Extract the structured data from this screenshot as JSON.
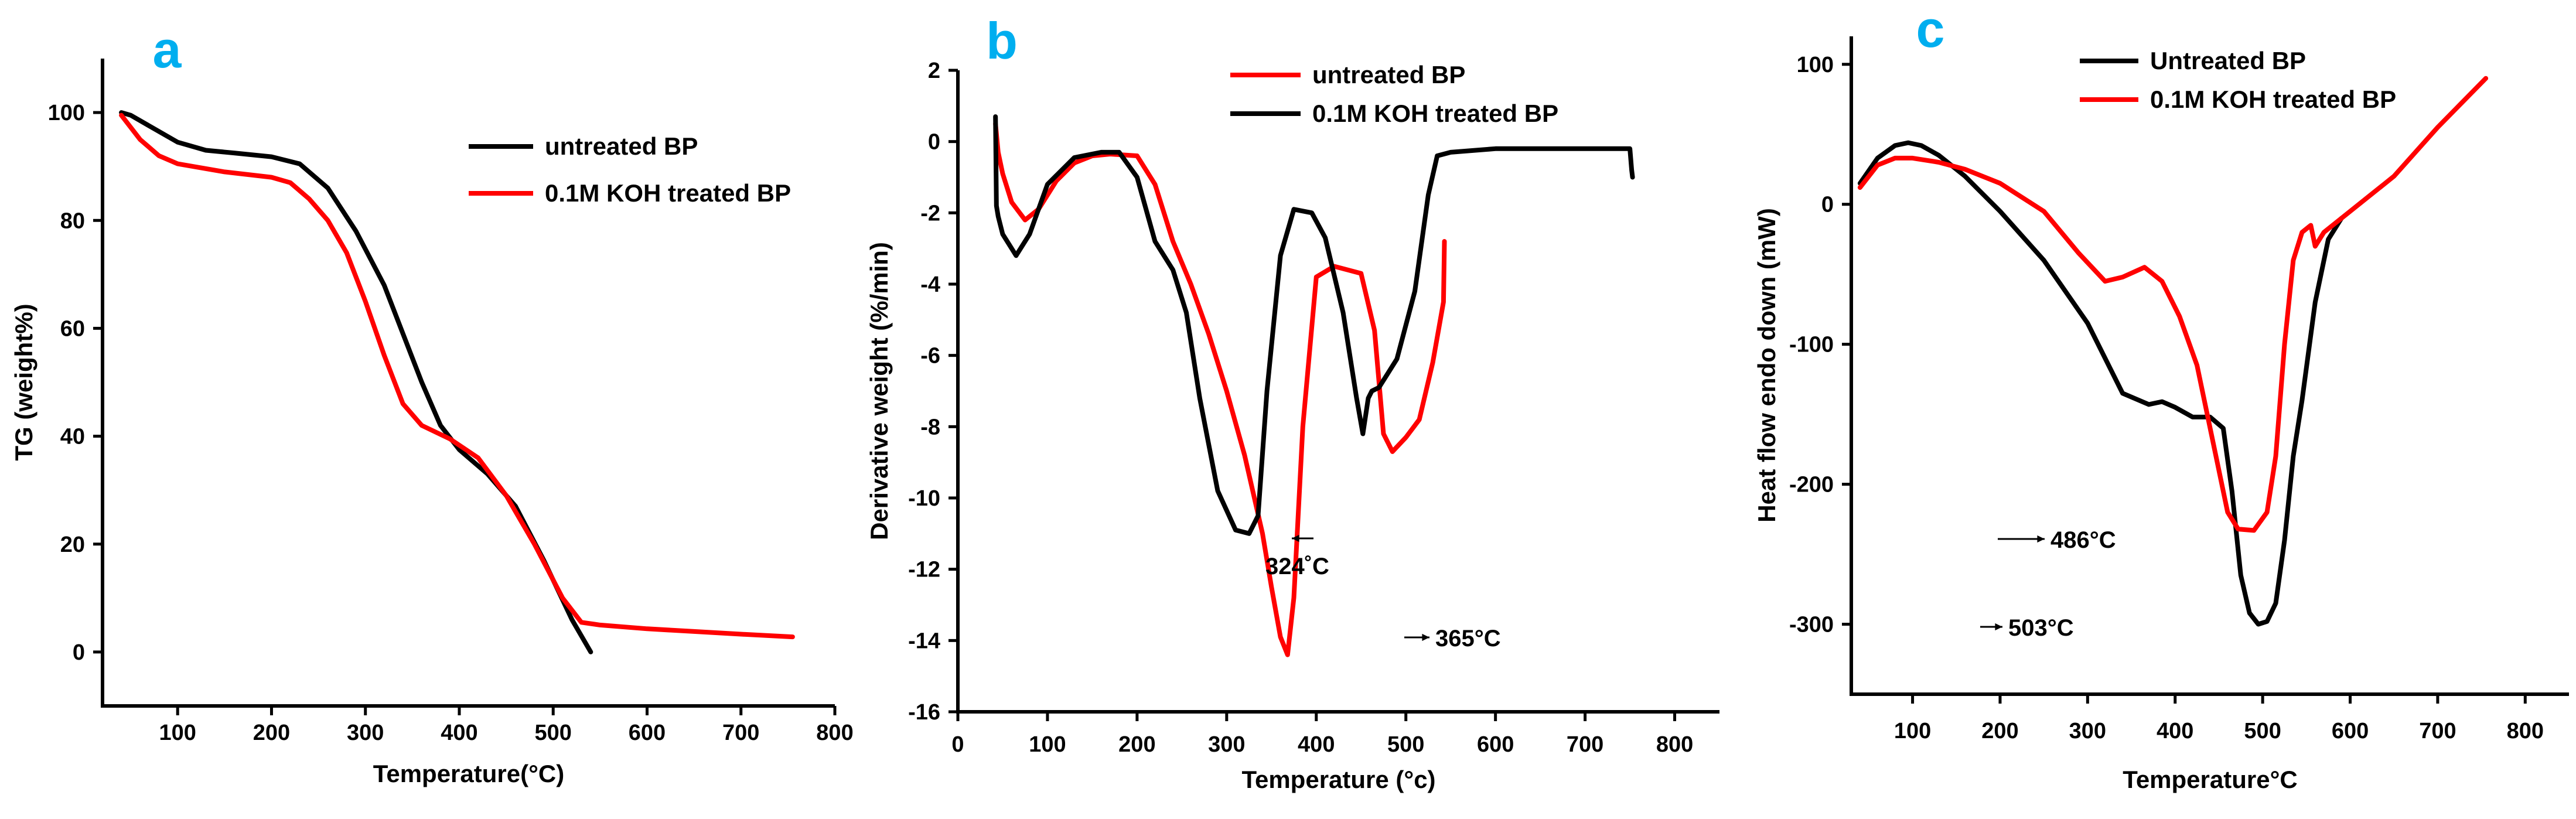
{
  "chart_data": [
    {
      "type": "line",
      "panel_label": "a",
      "title": "",
      "xlabel": "Temperature(°C)",
      "ylabel": "TG (weight%)",
      "xlim": [
        20,
        800
      ],
      "ylim": [
        -10,
        110
      ],
      "xticks": [
        100,
        200,
        300,
        400,
        500,
        600,
        700,
        800
      ],
      "yticks": [
        0,
        20,
        40,
        60,
        80,
        100
      ],
      "legend_position": "upper-right",
      "series": [
        {
          "name": "untreated BP",
          "color": "#000000",
          "x": [
            40,
            50,
            70,
            100,
            130,
            160,
            200,
            230,
            260,
            290,
            320,
            340,
            360,
            380,
            400,
            430,
            460,
            490,
            520,
            540
          ],
          "y": [
            100,
            99.5,
            97.5,
            94.5,
            93,
            92.5,
            91.8,
            90.5,
            86,
            78,
            68,
            59,
            50,
            42,
            37.5,
            33,
            27,
            17,
            6,
            0
          ]
        },
        {
          "name": "0.1M KOH treated BP",
          "color": "#ff0000",
          "x": [
            40,
            60,
            80,
            100,
            150,
            200,
            220,
            240,
            260,
            280,
            300,
            320,
            340,
            360,
            390,
            420,
            450,
            480,
            510,
            530,
            550,
            600,
            650,
            700,
            755
          ],
          "y": [
            99.5,
            95,
            92,
            90.5,
            89,
            88,
            87,
            84,
            80,
            74,
            65,
            55,
            46,
            42,
            39.5,
            36,
            29,
            20,
            10,
            5.5,
            5,
            4.3,
            3.8,
            3.3,
            2.8
          ]
        }
      ]
    },
    {
      "type": "line",
      "panel_label": "b",
      "title": "",
      "xlabel": "Temperature (°c)",
      "ylabel": "Derivative weight (%/min)",
      "xlim": [
        0,
        850
      ],
      "ylim": [
        -16,
        2
      ],
      "xticks": [
        0,
        100,
        200,
        300,
        400,
        500,
        600,
        700,
        800
      ],
      "yticks": [
        2,
        0,
        -2,
        -4,
        -6,
        -8,
        -10,
        -12,
        -14,
        -16
      ],
      "legend_position": "top-right",
      "series": [
        {
          "name": "untreated BP",
          "color": "#ff0000",
          "x": [
            42,
            45,
            50,
            60,
            75,
            90,
            110,
            130,
            150,
            170,
            200,
            220,
            240,
            260,
            280,
            300,
            320,
            340,
            350,
            360,
            368,
            375,
            385,
            400,
            420,
            450,
            465,
            475,
            485,
            500,
            515,
            530,
            542,
            543
          ],
          "y": [
            0.5,
            -0.3,
            -0.9,
            -1.7,
            -2.2,
            -1.9,
            -1.1,
            -0.6,
            -0.4,
            -0.35,
            -0.4,
            -1.2,
            -2.8,
            -4,
            -5.4,
            -7,
            -8.8,
            -11,
            -12.5,
            -13.9,
            -14.4,
            -12.8,
            -8,
            -3.8,
            -3.5,
            -3.7,
            -5.3,
            -8.2,
            -8.7,
            -8.3,
            -7.8,
            -6.2,
            -4.5,
            -2.8
          ]
        },
        {
          "name": "0.1M KOH treated BP",
          "color": "#000000",
          "x": [
            42,
            43,
            45,
            50,
            65,
            80,
            100,
            130,
            160,
            180,
            200,
            220,
            240,
            255,
            270,
            290,
            310,
            325,
            335,
            345,
            360,
            375,
            395,
            410,
            430,
            445,
            452,
            458,
            462,
            470,
            490,
            510,
            525,
            535,
            550,
            600,
            650,
            700,
            750,
            752,
            753
          ],
          "y": [
            0.7,
            -1.8,
            -2.1,
            -2.6,
            -3.2,
            -2.6,
            -1.2,
            -0.45,
            -0.3,
            -0.3,
            -1,
            -2.8,
            -3.6,
            -4.8,
            -7.2,
            -9.8,
            -10.9,
            -11,
            -10.5,
            -7,
            -3.2,
            -1.9,
            -2,
            -2.7,
            -4.8,
            -7.2,
            -8.2,
            -7.2,
            -7,
            -6.9,
            -6.1,
            -4.2,
            -1.5,
            -0.4,
            -0.3,
            -0.2,
            -0.2,
            -0.2,
            -0.2,
            -0.8,
            -1
          ]
        }
      ],
      "annotations": [
        "324˚C",
        "365°C"
      ]
    },
    {
      "type": "line",
      "panel_label": "c",
      "title": "",
      "xlabel": "Temperature°C",
      "ylabel": "Heat flow endo down (mW)",
      "xlim": [
        30,
        850
      ],
      "ylim": [
        -350,
        120
      ],
      "xticks": [
        100,
        200,
        300,
        400,
        500,
        600,
        700,
        800
      ],
      "yticks": [
        100,
        0,
        -100,
        -200,
        -300
      ],
      "legend_position": "top-left",
      "series": [
        {
          "name": "Untreated BP",
          "color": "#000000",
          "x": [
            40,
            60,
            80,
            95,
            110,
            130,
            160,
            200,
            250,
            300,
            340,
            370,
            385,
            400,
            420,
            440,
            455,
            465,
            475,
            485,
            495,
            505,
            515,
            525,
            535,
            545,
            560,
            575,
            590
          ],
          "y": [
            15,
            33,
            42,
            44,
            42,
            35,
            20,
            -5,
            -40,
            -85,
            -135,
            -143,
            -141,
            -145,
            -152,
            -152,
            -160,
            -205,
            -265,
            -292,
            -300,
            -298,
            -285,
            -240,
            -180,
            -140,
            -70,
            -25,
            -10
          ]
        },
        {
          "name": "0.1M KOH treated BP",
          "color": "#ff0000",
          "x": [
            40,
            60,
            80,
            100,
            130,
            160,
            200,
            250,
            290,
            320,
            340,
            365,
            385,
            405,
            425,
            445,
            460,
            472,
            490,
            505,
            515,
            525,
            535,
            545,
            555,
            560,
            570,
            590,
            620,
            650,
            700,
            755
          ],
          "y": [
            12,
            28,
            33,
            33,
            30,
            25,
            15,
            -5,
            -35,
            -55,
            -52,
            -45,
            -55,
            -80,
            -115,
            -175,
            -220,
            -232,
            -233,
            -220,
            -180,
            -100,
            -40,
            -20,
            -15,
            -30,
            -20,
            -10,
            5,
            20,
            55,
            90
          ]
        }
      ],
      "annotations": [
        "486°C",
        "503°C"
      ]
    }
  ]
}
